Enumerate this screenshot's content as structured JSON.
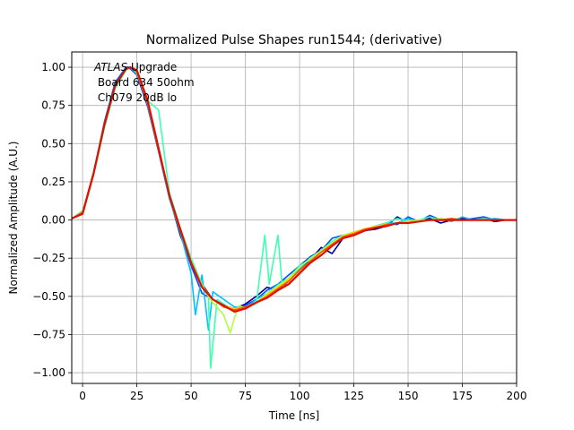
{
  "chart_data": {
    "type": "line",
    "title": "Normalized Pulse Shapes run1544; (derivative)",
    "xlabel": "Time [ns]",
    "ylabel": "Normalized Amplitude (A.U.)",
    "xlim": [
      -5,
      200
    ],
    "ylim": [
      -1.07,
      1.1
    ],
    "xticks": [
      0,
      25,
      50,
      75,
      100,
      125,
      150,
      175,
      200
    ],
    "xtick_labels": [
      "0",
      "25",
      "50",
      "75",
      "100",
      "125",
      "150",
      "175",
      "200"
    ],
    "yticks": [
      -1.0,
      -0.75,
      -0.5,
      -0.25,
      0.0,
      0.25,
      0.5,
      0.75,
      1.0
    ],
    "ytick_labels": [
      "−1.00",
      "−0.75",
      "−0.50",
      "−0.25",
      "0.00",
      "0.25",
      "0.50",
      "0.75",
      "1.00"
    ],
    "grid": true,
    "annotation": {
      "atlas": "ATLAS",
      "line1_rest": " Upgrade",
      "line2": " Board 634 50ohm",
      "line3": " Ch079 20dB lo"
    },
    "series": [
      {
        "color": "#00008f",
        "x": [
          -5,
          0,
          5,
          10,
          15,
          20,
          22,
          25,
          30,
          35,
          40,
          45,
          50,
          55,
          60,
          65,
          70,
          75,
          80,
          85,
          90,
          95,
          100,
          105,
          110,
          115,
          120,
          125,
          130,
          135,
          140,
          145,
          150,
          155,
          160,
          165,
          170,
          175,
          180,
          185,
          190,
          195,
          200
        ],
        "y": [
          0.01,
          0.05,
          0.3,
          0.62,
          0.88,
          1.0,
          1.0,
          0.96,
          0.75,
          0.45,
          0.15,
          -0.1,
          -0.28,
          -0.42,
          -0.52,
          -0.56,
          -0.58,
          -0.55,
          -0.5,
          -0.44,
          -0.46,
          -0.4,
          -0.32,
          -0.26,
          -0.18,
          -0.22,
          -0.12,
          -0.1,
          -0.07,
          -0.06,
          -0.04,
          0.02,
          -0.02,
          0.0,
          0.01,
          -0.02,
          0.0,
          0.01,
          0.0,
          0.01,
          -0.01,
          0.0,
          0.0
        ]
      },
      {
        "color": "#0050ff",
        "x": [
          -5,
          0,
          5,
          10,
          15,
          20,
          22,
          25,
          30,
          35,
          40,
          45,
          50,
          55,
          60,
          65,
          70,
          75,
          80,
          85,
          90,
          95,
          100,
          105,
          110,
          115,
          120,
          125,
          130,
          135,
          140,
          145,
          150,
          155,
          160,
          165,
          170,
          175,
          180,
          185,
          190,
          195,
          200
        ],
        "y": [
          0.01,
          0.05,
          0.3,
          0.64,
          0.9,
          1.0,
          0.99,
          0.95,
          0.74,
          0.45,
          0.14,
          -0.08,
          -0.3,
          -0.48,
          -0.52,
          -0.56,
          -0.6,
          -0.56,
          -0.52,
          -0.46,
          -0.42,
          -0.36,
          -0.3,
          -0.24,
          -0.2,
          -0.12,
          -0.1,
          -0.1,
          -0.06,
          -0.04,
          -0.02,
          -0.03,
          0.02,
          -0.01,
          0.03,
          0.0,
          0.01,
          0.0,
          0.01,
          0.02,
          0.0,
          0.0,
          0.0
        ]
      },
      {
        "color": "#00c0ff",
        "x": [
          -5,
          0,
          5,
          10,
          15,
          20,
          22,
          25,
          30,
          35,
          40,
          45,
          50,
          52,
          55,
          58,
          60,
          65,
          70,
          75,
          80,
          85,
          90,
          95,
          100,
          105,
          110,
          115,
          120,
          125,
          130,
          135,
          140,
          145,
          150,
          155,
          160,
          165,
          170,
          175,
          180,
          185,
          190,
          195,
          200
        ],
        "y": [
          0.01,
          0.05,
          0.31,
          0.62,
          0.87,
          0.99,
          1.0,
          0.97,
          0.76,
          0.47,
          0.14,
          -0.08,
          -0.35,
          -0.62,
          -0.36,
          -0.72,
          -0.47,
          -0.52,
          -0.57,
          -0.58,
          -0.52,
          -0.48,
          -0.42,
          -0.38,
          -0.32,
          -0.25,
          -0.2,
          -0.14,
          -0.12,
          -0.08,
          -0.06,
          -0.04,
          -0.02,
          -0.02,
          0.01,
          -0.01,
          0.0,
          0.01,
          -0.01,
          0.02,
          0.0,
          0.0,
          0.01,
          0.0,
          0.0
        ]
      },
      {
        "color": "#40ffb0",
        "x": [
          -5,
          0,
          5,
          10,
          15,
          20,
          22,
          25,
          30,
          35,
          40,
          45,
          50,
          55,
          58,
          59,
          62,
          65,
          70,
          75,
          80,
          84,
          86,
          90,
          92,
          95,
          100,
          105,
          110,
          115,
          120,
          125,
          130,
          135,
          140,
          145,
          150,
          155,
          160,
          165,
          170,
          175,
          180,
          185,
          190,
          195,
          200
        ],
        "y": [
          0.01,
          0.06,
          0.29,
          0.6,
          0.86,
          0.98,
          1.0,
          0.96,
          0.78,
          0.72,
          0.18,
          -0.05,
          -0.25,
          -0.42,
          -0.5,
          -0.97,
          -0.52,
          -0.55,
          -0.6,
          -0.57,
          -0.55,
          -0.1,
          -0.42,
          -0.1,
          -0.44,
          -0.38,
          -0.3,
          -0.26,
          -0.2,
          -0.14,
          -0.1,
          -0.08,
          -0.06,
          -0.04,
          -0.02,
          0.01,
          -0.01,
          0.0,
          0.02,
          0.0,
          0.01,
          0.0,
          0.0,
          0.01,
          0.0,
          0.0,
          0.0
        ]
      },
      {
        "color": "#b0ff40",
        "x": [
          -5,
          0,
          5,
          10,
          15,
          20,
          22,
          25,
          30,
          35,
          40,
          45,
          50,
          55,
          60,
          65,
          68,
          70,
          72,
          75,
          80,
          85,
          90,
          95,
          100,
          105,
          110,
          115,
          120,
          125,
          130,
          135,
          140,
          145,
          150,
          155,
          160,
          165,
          170,
          175,
          180,
          185,
          190,
          195,
          200
        ],
        "y": [
          0.01,
          0.05,
          0.3,
          0.62,
          0.88,
          0.99,
          1.0,
          0.97,
          0.76,
          0.46,
          0.16,
          -0.06,
          -0.28,
          -0.44,
          -0.54,
          -0.62,
          -0.74,
          -0.64,
          -0.56,
          -0.58,
          -0.54,
          -0.48,
          -0.43,
          -0.38,
          -0.31,
          -0.25,
          -0.2,
          -0.15,
          -0.1,
          -0.08,
          -0.06,
          -0.04,
          -0.03,
          -0.02,
          -0.01,
          0.0,
          0.0,
          0.01,
          0.0,
          0.0,
          0.0,
          0.0,
          0.0,
          0.0,
          0.0
        ]
      },
      {
        "color": "#ffd000",
        "x": [
          -5,
          0,
          5,
          10,
          15,
          20,
          22,
          25,
          30,
          35,
          40,
          45,
          50,
          55,
          60,
          65,
          70,
          75,
          80,
          85,
          90,
          95,
          100,
          105,
          110,
          115,
          120,
          125,
          130,
          135,
          140,
          145,
          150,
          155,
          160,
          165,
          170,
          175,
          180,
          185,
          190,
          195,
          200
        ],
        "y": [
          0.01,
          0.05,
          0.3,
          0.62,
          0.88,
          0.99,
          1.0,
          0.97,
          0.77,
          0.46,
          0.16,
          -0.06,
          -0.27,
          -0.43,
          -0.52,
          -0.56,
          -0.58,
          -0.57,
          -0.54,
          -0.49,
          -0.44,
          -0.39,
          -0.33,
          -0.27,
          -0.21,
          -0.16,
          -0.11,
          -0.08,
          -0.06,
          -0.04,
          -0.03,
          -0.02,
          -0.01,
          -0.01,
          0.0,
          0.0,
          0.0,
          0.0,
          0.0,
          0.0,
          0.0,
          0.0,
          0.0
        ]
      },
      {
        "color": "#ff5000",
        "x": [
          -5,
          0,
          5,
          10,
          15,
          20,
          22,
          25,
          30,
          35,
          40,
          45,
          50,
          55,
          60,
          65,
          70,
          75,
          80,
          85,
          90,
          95,
          100,
          105,
          110,
          115,
          120,
          125,
          130,
          135,
          140,
          145,
          150,
          155,
          160,
          165,
          170,
          175,
          180,
          185,
          190,
          195,
          200
        ],
        "y": [
          0.01,
          0.05,
          0.31,
          0.63,
          0.88,
          0.99,
          1.0,
          0.97,
          0.76,
          0.46,
          0.15,
          -0.07,
          -0.28,
          -0.44,
          -0.52,
          -0.57,
          -0.59,
          -0.57,
          -0.54,
          -0.5,
          -0.45,
          -0.4,
          -0.33,
          -0.27,
          -0.21,
          -0.16,
          -0.11,
          -0.09,
          -0.06,
          -0.05,
          -0.03,
          -0.02,
          -0.02,
          -0.01,
          0.0,
          0.0,
          0.01,
          0.0,
          0.0,
          0.0,
          0.0,
          0.0,
          0.0
        ]
      },
      {
        "color": "#dd1100",
        "x": [
          -5,
          0,
          5,
          10,
          15,
          20,
          22,
          25,
          30,
          35,
          40,
          45,
          50,
          55,
          60,
          65,
          70,
          75,
          80,
          85,
          90,
          95,
          100,
          105,
          110,
          115,
          120,
          125,
          130,
          135,
          140,
          145,
          150,
          155,
          160,
          165,
          170,
          175,
          180,
          185,
          190,
          195,
          200
        ],
        "y": [
          0.01,
          0.04,
          0.3,
          0.62,
          0.88,
          0.99,
          1.0,
          0.98,
          0.78,
          0.47,
          0.16,
          -0.06,
          -0.28,
          -0.44,
          -0.52,
          -0.56,
          -0.6,
          -0.58,
          -0.54,
          -0.51,
          -0.46,
          -0.42,
          -0.35,
          -0.28,
          -0.23,
          -0.17,
          -0.12,
          -0.1,
          -0.07,
          -0.05,
          -0.04,
          -0.02,
          -0.02,
          -0.01,
          0.0,
          0.0,
          0.0,
          0.0,
          0.0,
          0.0,
          0.0,
          0.0,
          0.0
        ]
      }
    ]
  }
}
